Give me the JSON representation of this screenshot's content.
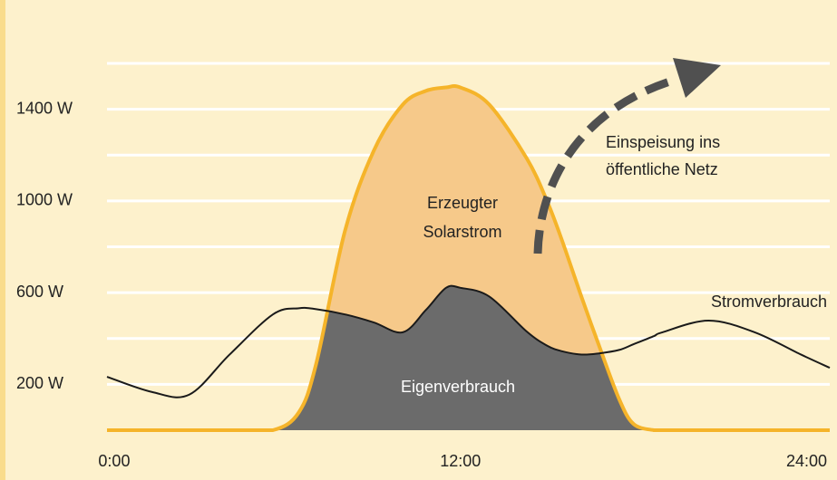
{
  "chart_data": {
    "type": "area",
    "x": [
      -0.25,
      1.3,
      2.6,
      4,
      5.5,
      6.4,
      7,
      8,
      9,
      10,
      10.8,
      11.5,
      12,
      13,
      14.3,
      15,
      15.5,
      16.2,
      16.8,
      17.5,
      18,
      18.7,
      19,
      20.6,
      22.2,
      23.8,
      24.8
    ],
    "series": [
      {
        "color": "#f6c98a",
        "line_color": "#f5b42a",
        "values": [
          0,
          0,
          0,
          0,
          0,
          78,
          290,
          870,
          1220,
          1420,
          1480,
          1495,
          1495,
          1420,
          1185,
          1000,
          835,
          580,
          370,
          136,
          27,
          0,
          0,
          0,
          0,
          0,
          0
        ]
      },
      {
        "name": "Stromverbrauch",
        "color": "#1a1a1a",
        "fill_under_solar": "#6b6b6b",
        "values": [
          233,
          167,
          155,
          330,
          505,
          532,
          528,
          505,
          470,
          427,
          524,
          621,
          621,
          583,
          430,
          369,
          345,
          330,
          335,
          350,
          375,
          410,
          427,
          478,
          427,
          330,
          272
        ]
      }
    ],
    "annotations": [
      {
        "lines": [
          "Erzeugter",
          "Solarstrom"
        ]
      },
      {
        "lines": [
          "Eigenverbrauch"
        ]
      },
      {
        "lines": [
          "Einspeisung ins",
          "öffentliche Netz"
        ]
      }
    ],
    "xlim": [
      -0.25,
      24.8
    ],
    "xticks": [
      {
        "value": 0,
        "label": "0:00"
      },
      {
        "value": 12,
        "label": "12:00"
      },
      {
        "value": 24,
        "label": "24:00"
      }
    ],
    "ylim": [
      0,
      1750
    ],
    "yticks": [
      {
        "value": 200,
        "label": "200 W"
      },
      {
        "value": 600,
        "label": "600 W"
      },
      {
        "value": 1000,
        "label": "1000 W"
      },
      {
        "value": 1400,
        "label": "1400 W"
      }
    ],
    "ygrid": [
      200,
      400,
      600,
      800,
      1000,
      1200,
      1400,
      1600
    ],
    "grid_color": "#ffffff"
  }
}
